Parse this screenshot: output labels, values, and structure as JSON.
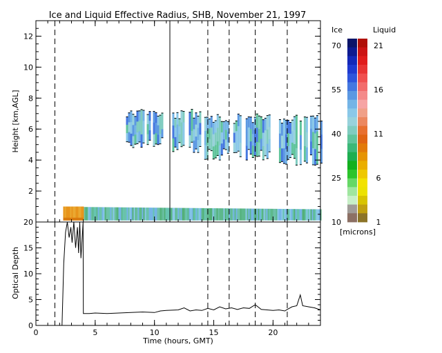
{
  "title": "Ice and Liquid Effective Radius, SHB, November 21, 1997",
  "chart_data": [
    {
      "type": "heatmap",
      "name": "effective-radius",
      "ylabel": "Height [km,AGL]",
      "xlim": [
        0,
        24
      ],
      "ylim": [
        0,
        13
      ],
      "x_ticks": [
        0,
        5,
        10,
        15,
        20
      ],
      "x_minor_step": 1,
      "y_ticks": [
        2,
        4,
        6,
        8,
        10,
        12
      ],
      "y_minor_step": 0.5,
      "dashed_lines_x": [
        1.6,
        14.5,
        16.3,
        18.5,
        21.2
      ],
      "solid_lines_x": [
        11.3
      ],
      "boundary_layer": {
        "x_range": [
          2.3,
          24
        ],
        "top_km": 1.0,
        "bottom_km": 0.1,
        "warm_segment_x": [
          2.3,
          4.0
        ]
      },
      "cloud_regions": [
        {
          "x_range": [
            7.6,
            10.7
          ],
          "y_range": [
            4.8,
            7.3
          ]
        },
        {
          "x_range": [
            11.5,
            13.8
          ],
          "y_range": [
            4.5,
            7.3
          ]
        },
        {
          "x_range": [
            14.2,
            19.7
          ],
          "y_range": [
            4.0,
            7.0
          ]
        },
        {
          "x_range": [
            20.5,
            24.0
          ],
          "y_range": [
            3.6,
            7.0
          ]
        }
      ]
    },
    {
      "type": "line",
      "name": "optical-depth",
      "ylabel": "Optical Depth",
      "xlabel": "Time (hours, GMT)",
      "xlim": [
        0,
        24
      ],
      "ylim": [
        0,
        20
      ],
      "x_ticks": [
        0,
        5,
        10,
        15,
        20
      ],
      "x_tick_labels": [
        "0",
        "5",
        "10",
        "15",
        "20"
      ],
      "x_minor_step": 1,
      "y_ticks": [
        0,
        5,
        10,
        15,
        20
      ],
      "y_tick_labels": [
        "0",
        "5",
        "10",
        "15",
        "20"
      ],
      "y_minor_step": 1,
      "dashed_lines_x": [
        1.6,
        14.5,
        16.3,
        18.5,
        21.2
      ],
      "series": [
        {
          "x": [
            2.2,
            2.35,
            2.5,
            2.65,
            2.8,
            2.95,
            3.05,
            3.2,
            3.35,
            3.5,
            3.6,
            3.7,
            3.8,
            3.9,
            3.98,
            4.0,
            4.5,
            5,
            6,
            7,
            8,
            9,
            10,
            10.5,
            11,
            12,
            12.5,
            13,
            13.5,
            14,
            14.5,
            15,
            15.5,
            16,
            16.5,
            17,
            17.5,
            18,
            18.5,
            19,
            19.5,
            20,
            20.5,
            21,
            21.2,
            21.6,
            22,
            22.3,
            22.5,
            23,
            23.5,
            24
          ],
          "y": [
            0,
            12,
            18,
            20,
            17,
            19,
            16,
            20,
            15,
            19,
            14,
            20,
            13,
            17,
            20,
            2.3,
            2.3,
            2.4,
            2.3,
            2.4,
            2.5,
            2.6,
            2.5,
            2.8,
            2.9,
            3.0,
            3.4,
            2.8,
            3.0,
            2.9,
            3.3,
            3.0,
            3.6,
            3.2,
            3.4,
            3.1,
            3.4,
            3.3,
            4.0,
            3.1,
            3.0,
            2.9,
            3.0,
            2.8,
            3.1,
            3.6,
            3.8,
            5.9,
            3.8,
            3.6,
            3.4,
            3.0
          ]
        }
      ]
    }
  ],
  "colorbar": {
    "ice_label": "Ice",
    "liquid_label": "Liquid",
    "unit": "[microns]",
    "ice_ticks": [
      "70",
      "55",
      "40",
      "25",
      "10"
    ],
    "liquid_ticks": [
      "21",
      "16",
      "11",
      "6",
      "1"
    ],
    "ice_colors": [
      "#0a1468",
      "#0d1a90",
      "#1428b8",
      "#1f3ad0",
      "#2e55dc",
      "#4578e0",
      "#5c98e2",
      "#74b4e6",
      "#8ac8e8",
      "#98d2dc",
      "#80ccc0",
      "#60c49c",
      "#3cb878",
      "#1eae50",
      "#12b01e",
      "#2cc42c",
      "#66d866",
      "#a0e6a0",
      "#c8f0c8",
      "#a09c98",
      "#8c7064"
    ],
    "liquid_colors": [
      "#b01008",
      "#cc1414",
      "#e01c1c",
      "#e83434",
      "#f05050",
      "#f26c6c",
      "#f48a8a",
      "#f6a4a4",
      "#f0a088",
      "#ec8860",
      "#e87030",
      "#e06414",
      "#e27a0a",
      "#e69404",
      "#eaae00",
      "#eec800",
      "#f2e200",
      "#ece200",
      "#d8c400",
      "#c0a010",
      "#8c7428"
    ]
  }
}
